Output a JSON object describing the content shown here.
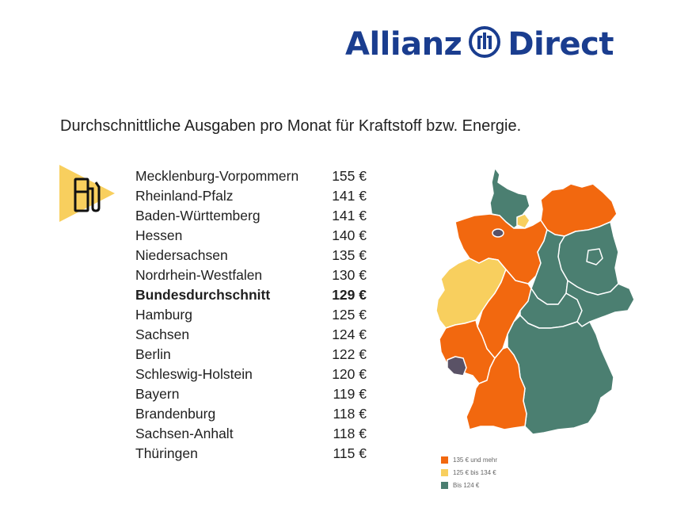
{
  "header": {
    "brand_left": "Allianz",
    "brand_right": "Direct",
    "logo_icon": "allianz-eagle-circle-icon",
    "brand_color": "#1a3d8f"
  },
  "subtitle": "Durchschnittliche Ausgaben pro Monat für Kraftstoff bzw. Energie.",
  "icons": {
    "pump": "fuel-pump-icon",
    "accent": "#f8cf5e"
  },
  "colors": {
    "high": "#f2680f",
    "mid": "#f8cf5e",
    "low": "#4b7f71",
    "other": "#5a5266"
  },
  "chart_data": {
    "type": "table",
    "unit": "€",
    "rows": [
      {
        "name": "Mecklenburg-Vorpommern",
        "value": 155,
        "label": "155 €",
        "category": "high"
      },
      {
        "name": "Rheinland-Pfalz",
        "value": 141,
        "label": "141 €",
        "category": "high"
      },
      {
        "name": "Baden-Württemberg",
        "value": 141,
        "label": "141 €",
        "category": "high"
      },
      {
        "name": "Hessen",
        "value": 140,
        "label": "140 €",
        "category": "high"
      },
      {
        "name": "Niedersachsen",
        "value": 135,
        "label": "135 €",
        "category": "high"
      },
      {
        "name": "Nordrhein-Westfalen",
        "value": 130,
        "label": "130 €",
        "category": "mid"
      },
      {
        "name": "Bundesdurchschnitt",
        "value": 129,
        "label": "129 €",
        "bold": true
      },
      {
        "name": "Hamburg",
        "value": 125,
        "label": "125 €",
        "category": "mid"
      },
      {
        "name": "Sachsen",
        "value": 124,
        "label": "124 €",
        "category": "low"
      },
      {
        "name": "Berlin",
        "value": 122,
        "label": "122 €",
        "category": "low"
      },
      {
        "name": "Schleswig-Holstein",
        "value": 120,
        "label": "120 €",
        "category": "low"
      },
      {
        "name": "Bayern",
        "value": 119,
        "label": "119 €",
        "category": "low"
      },
      {
        "name": "Brandenburg",
        "value": 118,
        "label": "118 €",
        "category": "low"
      },
      {
        "name": "Sachsen-Anhalt",
        "value": 118,
        "label": "118 €",
        "category": "low"
      },
      {
        "name": "Thüringen",
        "value": 115,
        "label": "115 €",
        "category": "low"
      }
    ],
    "legend": [
      {
        "label": "135 € und mehr",
        "category": "high"
      },
      {
        "label": "125 € bis 134 €",
        "category": "mid"
      },
      {
        "label": "Bis 124 €",
        "category": "low"
      }
    ]
  }
}
